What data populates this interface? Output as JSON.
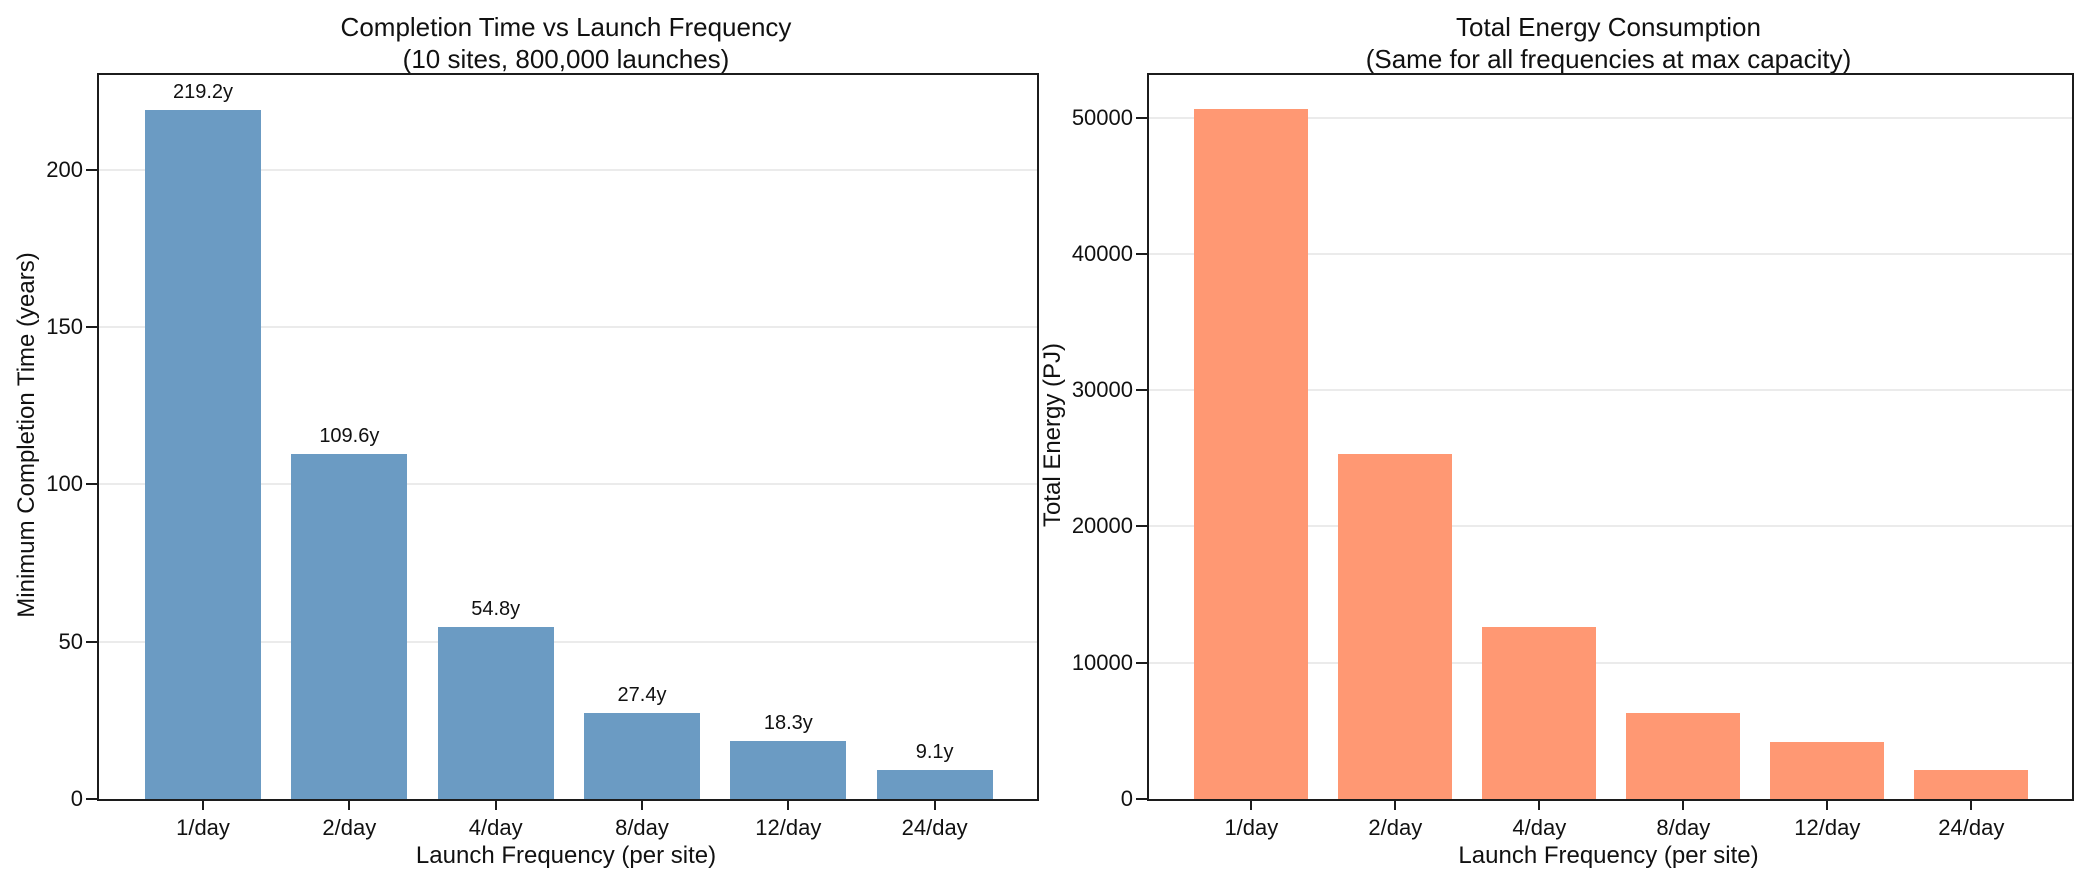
{
  "chart_data": [
    {
      "type": "bar",
      "title": "Completion Time vs Launch Frequency",
      "subtitle": "(10 sites, 800,000 launches)",
      "xlabel": "Launch Frequency (per site)",
      "ylabel": "Minimum Completion Time (years)",
      "categories": [
        "1/day",
        "2/day",
        "4/day",
        "8/day",
        "12/day",
        "24/day"
      ],
      "values": [
        219.2,
        109.6,
        54.8,
        27.4,
        18.3,
        9.1
      ],
      "bar_labels": [
        "219.2y",
        "109.6y",
        "54.8y",
        "27.4y",
        "18.3y",
        "9.1y"
      ],
      "bar_color": "#6B9BC3",
      "ylim": [
        0,
        230.2
      ],
      "yticks": [
        0,
        50,
        100,
        150,
        200
      ],
      "grid": "horizontal",
      "legend": "none"
    },
    {
      "type": "bar",
      "title": "Total Energy Consumption",
      "subtitle": "(Same for all frequencies at max capacity)",
      "xlabel": "Launch Frequency (per site)",
      "ylabel": "Total Energy (PJ)",
      "categories": [
        "1/day",
        "2/day",
        "4/day",
        "8/day",
        "12/day",
        "24/day"
      ],
      "values": [
        50600,
        25300,
        12650,
        6325,
        4217,
        2108
      ],
      "bar_labels": null,
      "bar_color": "#FF9873",
      "ylim": [
        0,
        53130
      ],
      "yticks": [
        0,
        10000,
        20000,
        30000,
        40000,
        50000
      ],
      "grid": "horizontal",
      "legend": "none"
    }
  ]
}
